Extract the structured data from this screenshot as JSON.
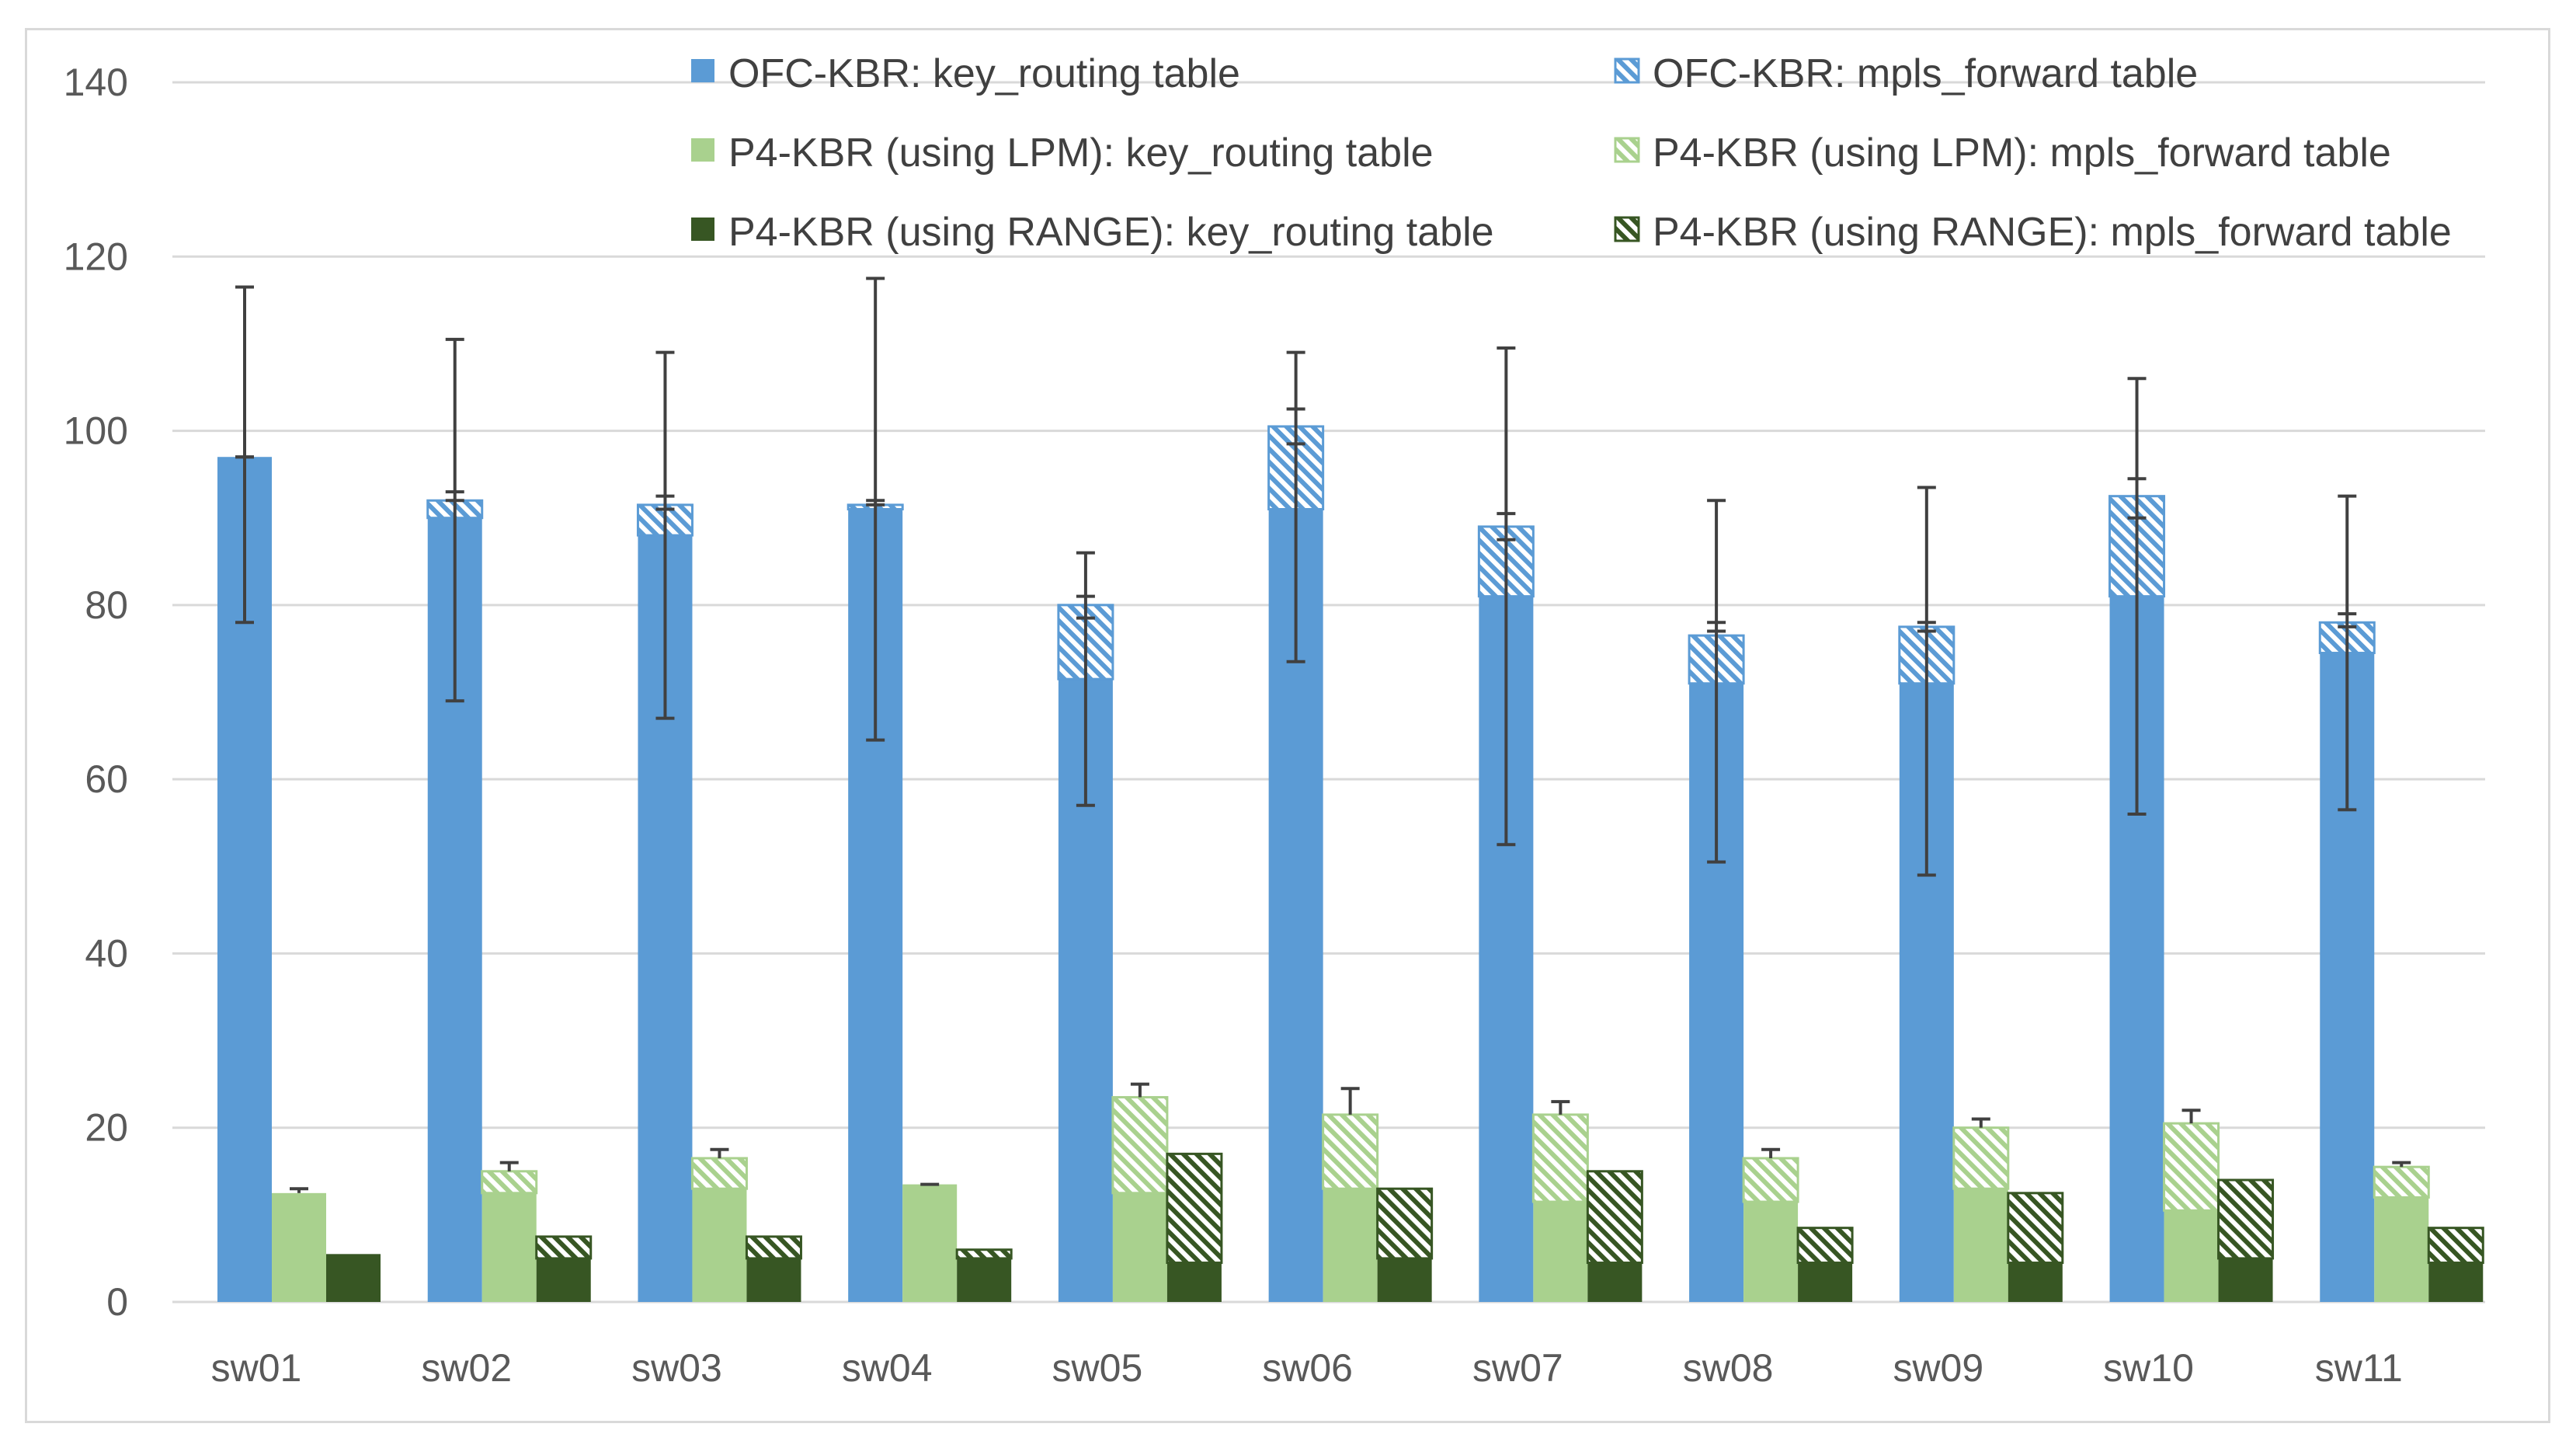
{
  "chart_data": {
    "type": "bar",
    "stacked": true,
    "title": "",
    "xlabel": "",
    "ylabel": "",
    "ylim": [
      0,
      140
    ],
    "yticks": [
      0,
      20,
      40,
      60,
      80,
      100,
      120,
      140
    ],
    "grid": true,
    "legend_position": "top-right",
    "categories": [
      "sw01",
      "sw02",
      "sw03",
      "sw04",
      "sw05",
      "sw06",
      "sw07",
      "sw08",
      "sw09",
      "sw10",
      "sw11"
    ],
    "groups": [
      {
        "name": "OFC-KBR",
        "series": [
          {
            "name": "OFC-KBR: key_routing table",
            "pattern": "solid",
            "color": "#5b9bd5",
            "values": [
              97,
              90,
              88,
              91,
              71.5,
              91,
              81,
              71,
              71,
              81,
              74.5
            ]
          },
          {
            "name": "OFC-KBR: mpls_forward table",
            "pattern": "hatch",
            "color": "#5b9bd5",
            "values": [
              0,
              2,
              3.5,
              0.5,
              8.5,
              9.5,
              8,
              5.5,
              6.5,
              11.5,
              3.5
            ]
          }
        ],
        "error_low": [
          78,
          69,
          67,
          64.5,
          57,
          73.5,
          52.5,
          50.5,
          49,
          56,
          56.5
        ],
        "error_high": [
          116.5,
          110.5,
          109,
          117.5,
          86,
          109,
          109.5,
          92,
          93.5,
          106,
          92.5
        ],
        "error_inner_low": [
          97,
          92,
          91,
          91.5,
          78.5,
          98.5,
          87.5,
          77,
          77,
          90,
          77.5
        ],
        "error_inner_high": [
          97,
          93,
          92.5,
          92,
          81,
          102.5,
          90.5,
          78,
          78,
          94.5,
          79
        ]
      },
      {
        "name": "P4-KBR (using LPM)",
        "series": [
          {
            "name": "P4-KBR (using LPM): key_routing table",
            "pattern": "solid",
            "color": "#a9d18e",
            "values": [
              12.5,
              12.5,
              13,
              13.5,
              12.5,
              13,
              11.5,
              11.5,
              13,
              10.5,
              12
            ]
          },
          {
            "name": "P4-KBR (using LPM): mpls_forward table",
            "pattern": "hatch",
            "color": "#a9d18e",
            "values": [
              0,
              2.5,
              3.5,
              0,
              11,
              8.5,
              10,
              5,
              7,
              10,
              3.5
            ]
          }
        ],
        "error_high": [
          13,
          16,
          17.5,
          13.5,
          25,
          24.5,
          23,
          17.5,
          21,
          22,
          16
        ]
      },
      {
        "name": "P4-KBR (using RANGE)",
        "series": [
          {
            "name": "P4-KBR (using RANGE): key_routing table",
            "pattern": "solid",
            "color": "#375623",
            "values": [
              5.5,
              5,
              5,
              5,
              4.5,
              5,
              4.5,
              4.5,
              4.5,
              5,
              4.5
            ]
          },
          {
            "name": "P4-KBR (using RANGE): mpls_forward table",
            "pattern": "hatch",
            "color": "#375623",
            "values": [
              0,
              2.5,
              2.5,
              1,
              12.5,
              8,
              10.5,
              4,
              8,
              9,
              4
            ]
          }
        ]
      }
    ],
    "legend": [
      "OFC-KBR: key_routing table",
      "OFC-KBR: mpls_forward table",
      "P4-KBR (using LPM): key_routing table",
      "P4-KBR (using LPM): mpls_forward table",
      "P4-KBR (using RANGE): key_routing table",
      "P4-KBR (using RANGE): mpls_forward table"
    ],
    "colors": {
      "gridline": "#d9d9d9",
      "axis": "#d9d9d9",
      "error_bar": "#404040",
      "text": "#595959",
      "legend_text": "#404040"
    }
  }
}
